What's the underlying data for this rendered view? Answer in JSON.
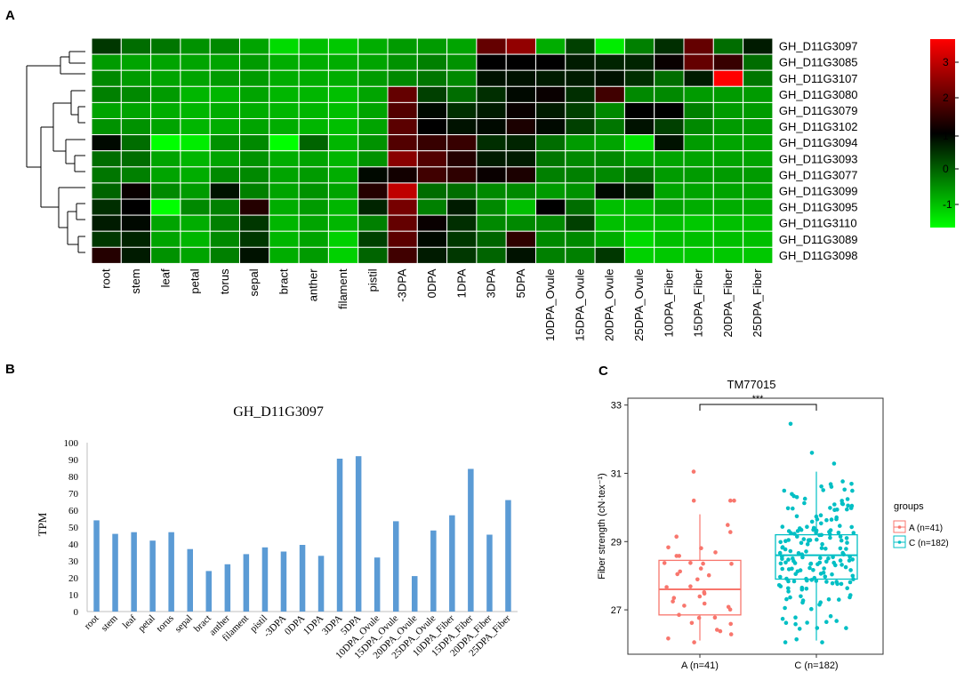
{
  "panel_labels": [
    "A",
    "B",
    "C"
  ],
  "chart_data": [
    {
      "type": "heatmap",
      "panel": "A",
      "columns": [
        "root",
        "stem",
        "leaf",
        "petal",
        "torus",
        "sepal",
        "bract",
        "anther",
        "filament",
        "pistil",
        "-3DPA",
        "0DPA",
        "1DPA",
        "3DPA",
        "5DPA",
        "10DPA_Ovule",
        "15DPA_Ovule",
        "20DPA_Ovule",
        "25DPA_Ovule",
        "10DPA_Fiber",
        "15DPA_Fiber",
        "20DPA_Fiber",
        "25DPA_Fiber"
      ],
      "rows": [
        "GH_D11G3097",
        "GH_D11G3085",
        "GH_D11G3107",
        "GH_D11G3080",
        "GH_D11G3079",
        "GH_D11G3102",
        "GH_D11G3094",
        "GH_D11G3093",
        "GH_D11G3077",
        "GH_D11G3099",
        "GH_D11G3095",
        "GH_D11G3110",
        "GH_D11G3089",
        "GH_D11G3098"
      ],
      "values": [
        [
          0.3,
          -0.3,
          -0.4,
          -0.7,
          -0.6,
          -0.9,
          -1.5,
          -1.2,
          -1.3,
          -1.0,
          -0.8,
          -0.8,
          -0.9,
          2.0,
          2.5,
          -1.0,
          0.2,
          -1.7,
          -0.5,
          0.4,
          2.0,
          -0.3,
          0.6
        ],
        [
          -0.8,
          -0.9,
          -0.9,
          -0.9,
          -0.9,
          -0.8,
          -1.0,
          -1.0,
          -1.0,
          -0.9,
          -0.7,
          -0.5,
          -0.7,
          0.9,
          0.9,
          0.9,
          0.6,
          0.5,
          0.5,
          1.0,
          2.0,
          1.5,
          -0.3
        ],
        [
          -0.6,
          -0.8,
          -0.9,
          -0.9,
          -0.8,
          -0.8,
          -1.0,
          -1.0,
          -1.0,
          -0.8,
          -0.6,
          -0.4,
          -0.6,
          0.7,
          0.7,
          0.6,
          0.6,
          0.7,
          0.4,
          -0.3,
          0.6,
          3.7,
          -0.4
        ],
        [
          -0.5,
          -0.6,
          -0.8,
          -1.1,
          -1.1,
          -0.9,
          -1.1,
          -1.1,
          -1.2,
          -0.9,
          2.0,
          0.2,
          -0.3,
          0.4,
          0.8,
          1.0,
          0.4,
          1.6,
          -0.6,
          -0.6,
          -0.8,
          -0.8,
          -0.8
        ],
        [
          -0.9,
          -0.9,
          -1.0,
          -1.1,
          -1.0,
          -1.0,
          -1.1,
          -1.1,
          -1.2,
          -0.9,
          1.8,
          0.8,
          0.4,
          0.6,
          1.0,
          0.6,
          0.2,
          -0.6,
          0.9,
          0.9,
          -0.5,
          -0.8,
          -0.8
        ],
        [
          -0.7,
          -0.7,
          -0.9,
          -1.1,
          -1.0,
          -0.9,
          -1.0,
          -1.1,
          -1.2,
          -0.9,
          1.9,
          0.9,
          0.7,
          0.8,
          1.2,
          0.8,
          0.2,
          -0.4,
          0.7,
          0.2,
          -0.6,
          -0.8,
          -0.8
        ],
        [
          0.8,
          -0.3,
          -1.9,
          -1.7,
          -0.7,
          -0.6,
          -1.9,
          -0.2,
          -1.1,
          -0.7,
          1.8,
          1.5,
          1.5,
          0.4,
          0.5,
          -0.3,
          -0.8,
          -0.9,
          -1.6,
          0.7,
          -0.8,
          -0.9,
          -0.9
        ],
        [
          -0.3,
          -0.3,
          -0.9,
          -1.1,
          -0.9,
          -0.7,
          -1.0,
          -0.9,
          -1.1,
          -0.7,
          2.4,
          1.8,
          1.3,
          0.6,
          0.6,
          -0.4,
          -0.6,
          -0.6,
          -0.9,
          -0.9,
          -0.9,
          -0.9,
          -0.9
        ],
        [
          -0.4,
          -0.5,
          -0.9,
          -1.0,
          -0.6,
          -0.6,
          -0.9,
          -0.8,
          -1.0,
          0.8,
          1.1,
          1.6,
          1.4,
          1.0,
          1.2,
          -0.5,
          -0.5,
          -0.6,
          -0.3,
          -0.8,
          -0.8,
          -0.8,
          -0.8
        ],
        [
          -0.2,
          1.0,
          -0.6,
          -0.8,
          0.7,
          -0.5,
          -0.9,
          -0.7,
          -0.9,
          1.3,
          3.0,
          -0.3,
          -0.3,
          -0.6,
          -0.6,
          -0.8,
          -0.7,
          0.8,
          0.5,
          -0.9,
          -0.9,
          -0.9,
          -0.9
        ],
        [
          0.4,
          0.9,
          -1.9,
          -0.6,
          -0.5,
          1.3,
          -1.0,
          -0.8,
          -1.1,
          0.5,
          2.2,
          -0.5,
          0.6,
          -0.6,
          -1.2,
          0.9,
          -0.3,
          -1.2,
          -1.2,
          -0.9,
          -1.0,
          -1.0,
          -1.0
        ],
        [
          0.6,
          0.8,
          -0.9,
          -1.0,
          -0.5,
          0.3,
          -1.1,
          -0.9,
          -1.1,
          -0.5,
          2.0,
          1.0,
          0.4,
          -0.6,
          -0.6,
          -0.6,
          0.2,
          -1.2,
          -1.2,
          -1.2,
          -1.3,
          -1.2,
          -1.2
        ],
        [
          0.3,
          0.5,
          -0.9,
          -1.1,
          -0.6,
          0.3,
          -1.1,
          -0.9,
          -1.4,
          0.2,
          1.9,
          0.8,
          0.3,
          -0.2,
          1.4,
          -0.6,
          -0.6,
          -1.0,
          -1.5,
          -1.2,
          -1.2,
          -1.2,
          -1.2
        ],
        [
          1.3,
          0.6,
          -0.7,
          -0.9,
          -0.5,
          0.7,
          -1.0,
          -0.8,
          -1.4,
          -0.2,
          1.6,
          0.6,
          0.3,
          -0.2,
          0.7,
          -0.5,
          -0.5,
          0.3,
          -1.4,
          -1.3,
          -1.3,
          -1.3,
          -1.3
        ]
      ],
      "color_scale": {
        "low": "#00ff00",
        "mid": "#000000",
        "high": "#ff0000",
        "vmin": -1.9,
        "vmid": 0.9,
        "vmax": 3.7
      },
      "legend_ticks": [
        3,
        2,
        1,
        0,
        -1
      ],
      "dendrogram_side": "left"
    },
    {
      "type": "bar",
      "panel": "B",
      "title": "GH_D11G3097",
      "ylabel": "TPM",
      "xlabel": "",
      "ylim": [
        0,
        100
      ],
      "yticks": [
        0,
        10,
        20,
        30,
        40,
        50,
        60,
        70,
        80,
        90,
        100
      ],
      "categories": [
        "root",
        "stem",
        "leaf",
        "petal",
        "torus",
        "sepal",
        "bract",
        "anther",
        "filament",
        "pistil",
        "-3DPA",
        "0DPA",
        "1DPA",
        "3DPA",
        "5DPA",
        "10DPA_Ovule",
        "15DPA_Ovule",
        "20DPA_Ovule",
        "25DPA_Ovule",
        "10DPA_Fiber",
        "15DPA_Fiber",
        "20DPA_Fiber",
        "25DPA_Fiber"
      ],
      "values": [
        54,
        46,
        47,
        42,
        47,
        37,
        24,
        28,
        34,
        38,
        35.5,
        39.5,
        33,
        90.5,
        92,
        32,
        53.5,
        21,
        48,
        57,
        84.5,
        45.5,
        66
      ],
      "bar_color": "#5b9bd5"
    },
    {
      "type": "box",
      "panel": "C",
      "title": "TM77015",
      "significance": "***",
      "ylabel": "Fiber strength (cN·tex⁻¹)",
      "ylim": [
        25.7,
        33.2
      ],
      "yticks": [
        27,
        29,
        31,
        33
      ],
      "legend_title": "groups",
      "groups": [
        {
          "name": "A",
          "label": "A (n=41)",
          "legend": "A (n=41)",
          "color": "#f8766d",
          "min": 26.1,
          "q1": 26.85,
          "median": 27.6,
          "q3": 28.45,
          "max": 29.8
        },
        {
          "name": "C",
          "label": "C (n=182)",
          "legend": "C (n=182)",
          "color": "#00bfc4",
          "min": 26.1,
          "q1": 27.9,
          "median": 28.6,
          "q3": 29.2,
          "max": 31.05
        }
      ]
    }
  ]
}
